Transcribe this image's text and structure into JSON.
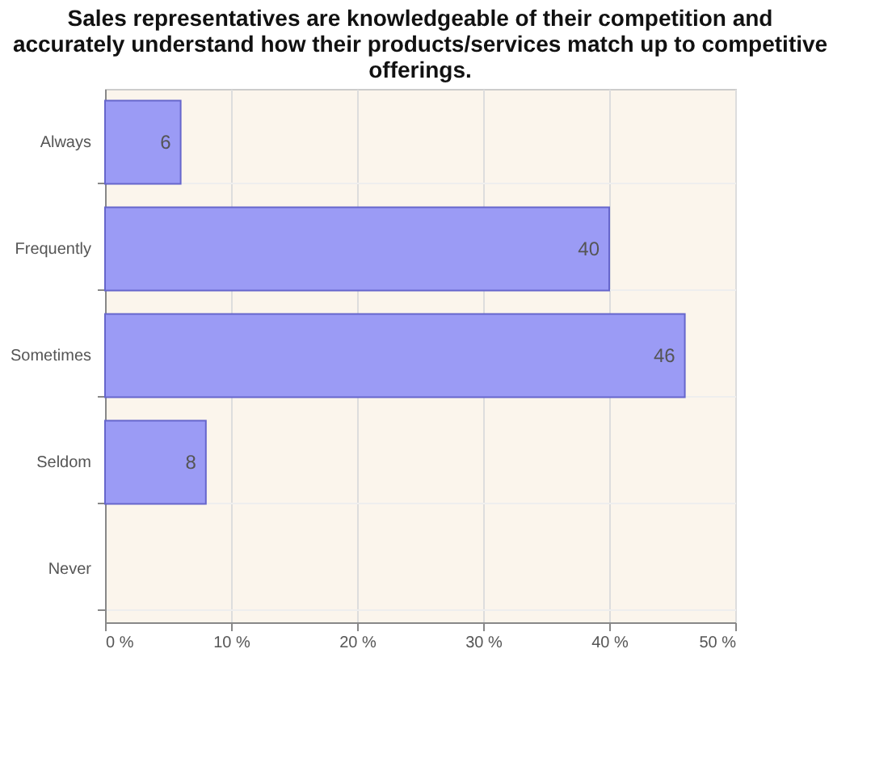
{
  "chart_data": {
    "type": "bar",
    "orientation": "horizontal",
    "title": "Sales representatives are knowledgeable of their competition and accurately understand how their products/services match up to competitive offerings.",
    "categories": [
      "Always",
      "Frequently",
      "Sometimes",
      "Seldom",
      "Never"
    ],
    "values": [
      6,
      40,
      46,
      8,
      null
    ],
    "color": "#9b9bf5",
    "xlim": [
      0,
      50
    ],
    "xticks": [
      {
        "value": 0,
        "label": "0 %"
      },
      {
        "value": 10,
        "label": "10 %"
      },
      {
        "value": 20,
        "label": "20 %"
      },
      {
        "value": 30,
        "label": "30 %"
      },
      {
        "value": 40,
        "label": "40 %"
      },
      {
        "value": 50,
        "label": "50 %"
      }
    ],
    "grid": true,
    "data_labels": true
  }
}
